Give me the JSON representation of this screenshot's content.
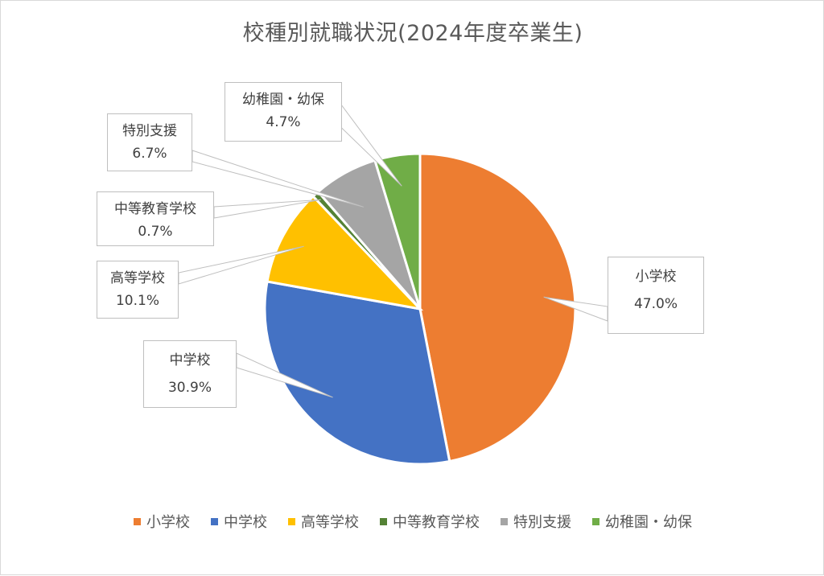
{
  "chart_data": {
    "type": "pie",
    "title": "校種別就職状況(2024年度卒業生)",
    "categories": [
      "小学校",
      "中学校",
      "高等学校",
      "中等教育学校",
      "特別支援",
      "幼稚園・幼保"
    ],
    "values": [
      47.0,
      30.9,
      10.1,
      0.7,
      6.7,
      4.7
    ],
    "value_labels": [
      "47.0%",
      "30.9%",
      "10.1%",
      "0.7%",
      "6.7%",
      "4.7%"
    ],
    "colors": [
      "#ED7D31",
      "#4472C4",
      "#FFC000",
      "#548235",
      "#A5A5A5",
      "#70AD47"
    ],
    "legend_position": "bottom",
    "start_angle": "12 o'clock",
    "direction": "clockwise"
  }
}
